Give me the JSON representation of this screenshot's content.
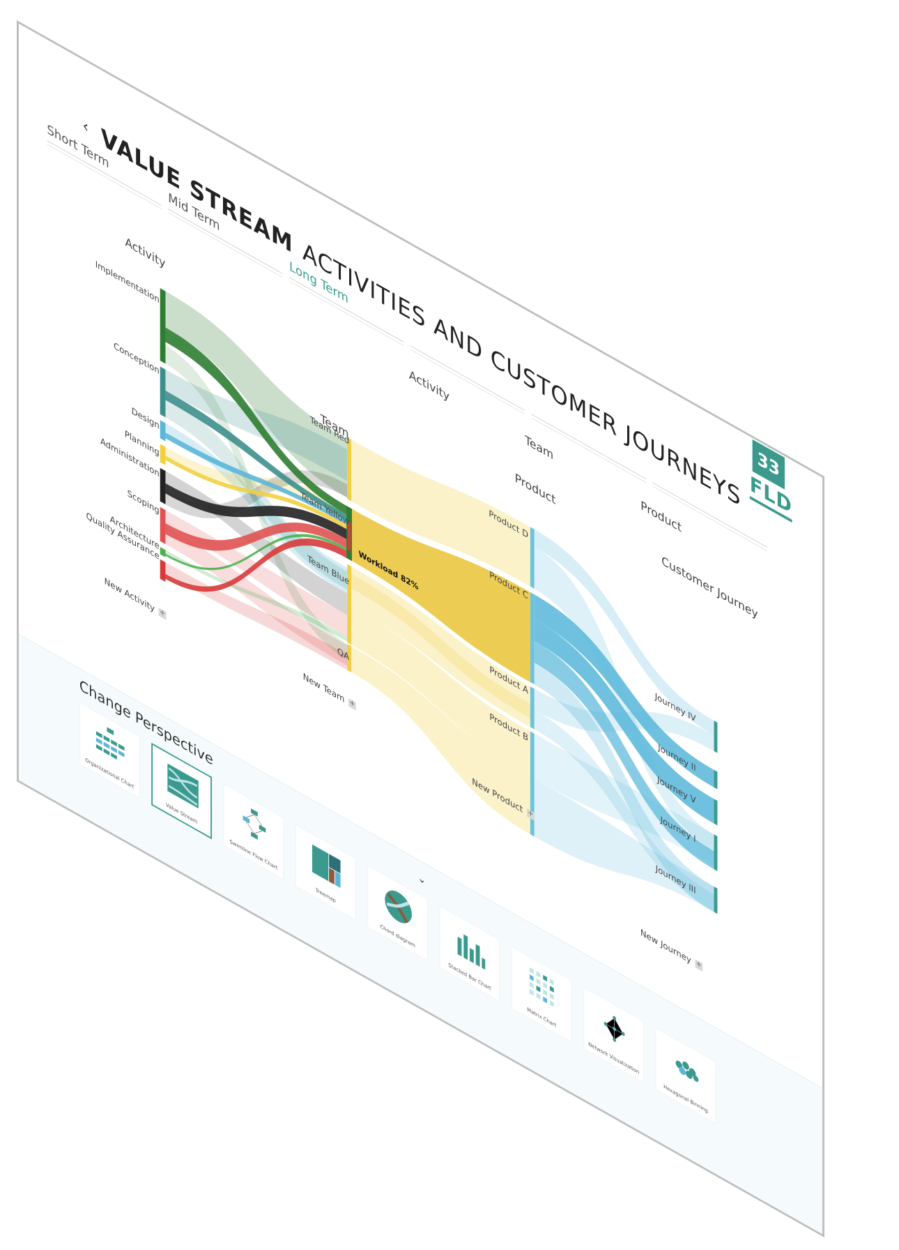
{
  "header": {
    "back_icon": "chevron-left-icon",
    "back_glyph": "‹",
    "title_bold": "VALUE STREAM",
    "title_rest": "ACTIVITIES AND CUSTOMER JOURNEYS"
  },
  "tabs": [
    {
      "label": "Short Term",
      "active": false
    },
    {
      "label": "Mid Term",
      "active": false
    },
    {
      "label": "Long Term",
      "active": true
    }
  ],
  "brand": {
    "number": "33",
    "name": "FLD",
    "color": "#3b9a8d"
  },
  "column_heads": {
    "activity_left": "Activity",
    "team_mid": "Team",
    "activity_top": "Activity",
    "team_top": "Team",
    "product_mid": "Product",
    "product_top": "Product",
    "journey_mid": "Customer Journey"
  },
  "activities": [
    {
      "label": "Implementation",
      "color": "#2e7d32"
    },
    {
      "label": "Conception",
      "color": "#3d8f8c"
    },
    {
      "label": "Design",
      "color": "#5bb6d8"
    },
    {
      "label": "Planning",
      "color": "#f2cf40"
    },
    {
      "label": "Administration",
      "color": "#222222"
    },
    {
      "label": "Scoping",
      "color": "#e05252"
    },
    {
      "label": "Architecture",
      "color": "#4caf50"
    },
    {
      "label": "Quality Assurance",
      "color": "#d83a3a"
    }
  ],
  "teams": [
    {
      "label": "Team Red"
    },
    {
      "label": "Team Yellow"
    },
    {
      "label": "Team Blue"
    },
    {
      "label": "QA"
    }
  ],
  "workload_label": "Workload 82%",
  "products": [
    {
      "label": "Product D"
    },
    {
      "label": "Product C"
    },
    {
      "label": "Product A"
    },
    {
      "label": "Product B"
    }
  ],
  "journeys": [
    {
      "label": "Journey IV"
    },
    {
      "label": "Journey II"
    },
    {
      "label": "Journey V"
    },
    {
      "label": "Journey I"
    },
    {
      "label": "Journey III"
    }
  ],
  "add_buttons": {
    "activity": "New Activity",
    "team": "New Team",
    "product": "New Product",
    "journey": "New Journey",
    "plus_glyph": "+"
  },
  "colors": {
    "team_bar": "#f2cf40",
    "product_bar": "#6cc3dd",
    "journey_bar": "#3b9a8d",
    "highlight_flow": "#ebc94a",
    "journey_flow": "#5fbadc"
  },
  "perspective": {
    "title": "Change Perspective",
    "chevron_icon": "chevron-down-icon",
    "chevron_glyph": "⌄",
    "cards": [
      {
        "label": "Organizational Chart",
        "icon": "org-chart-icon",
        "active": false
      },
      {
        "label": "Value Stream",
        "icon": "value-stream-icon",
        "active": true
      },
      {
        "label": "Swimline Flow Chart",
        "icon": "flow-chart-icon",
        "active": false
      },
      {
        "label": "Treemap",
        "icon": "treemap-icon",
        "active": false
      },
      {
        "label": "Chord diagram",
        "icon": "chord-diagram-icon",
        "active": false
      },
      {
        "label": "Stacked Bar Chart",
        "icon": "bar-chart-icon",
        "active": false
      },
      {
        "label": "Matrix Chart",
        "icon": "matrix-chart-icon",
        "active": false
      },
      {
        "label": "Network Visualization",
        "icon": "network-icon",
        "active": false
      },
      {
        "label": "Hexagonal Binning",
        "icon": "hexbin-icon",
        "active": false
      }
    ]
  }
}
